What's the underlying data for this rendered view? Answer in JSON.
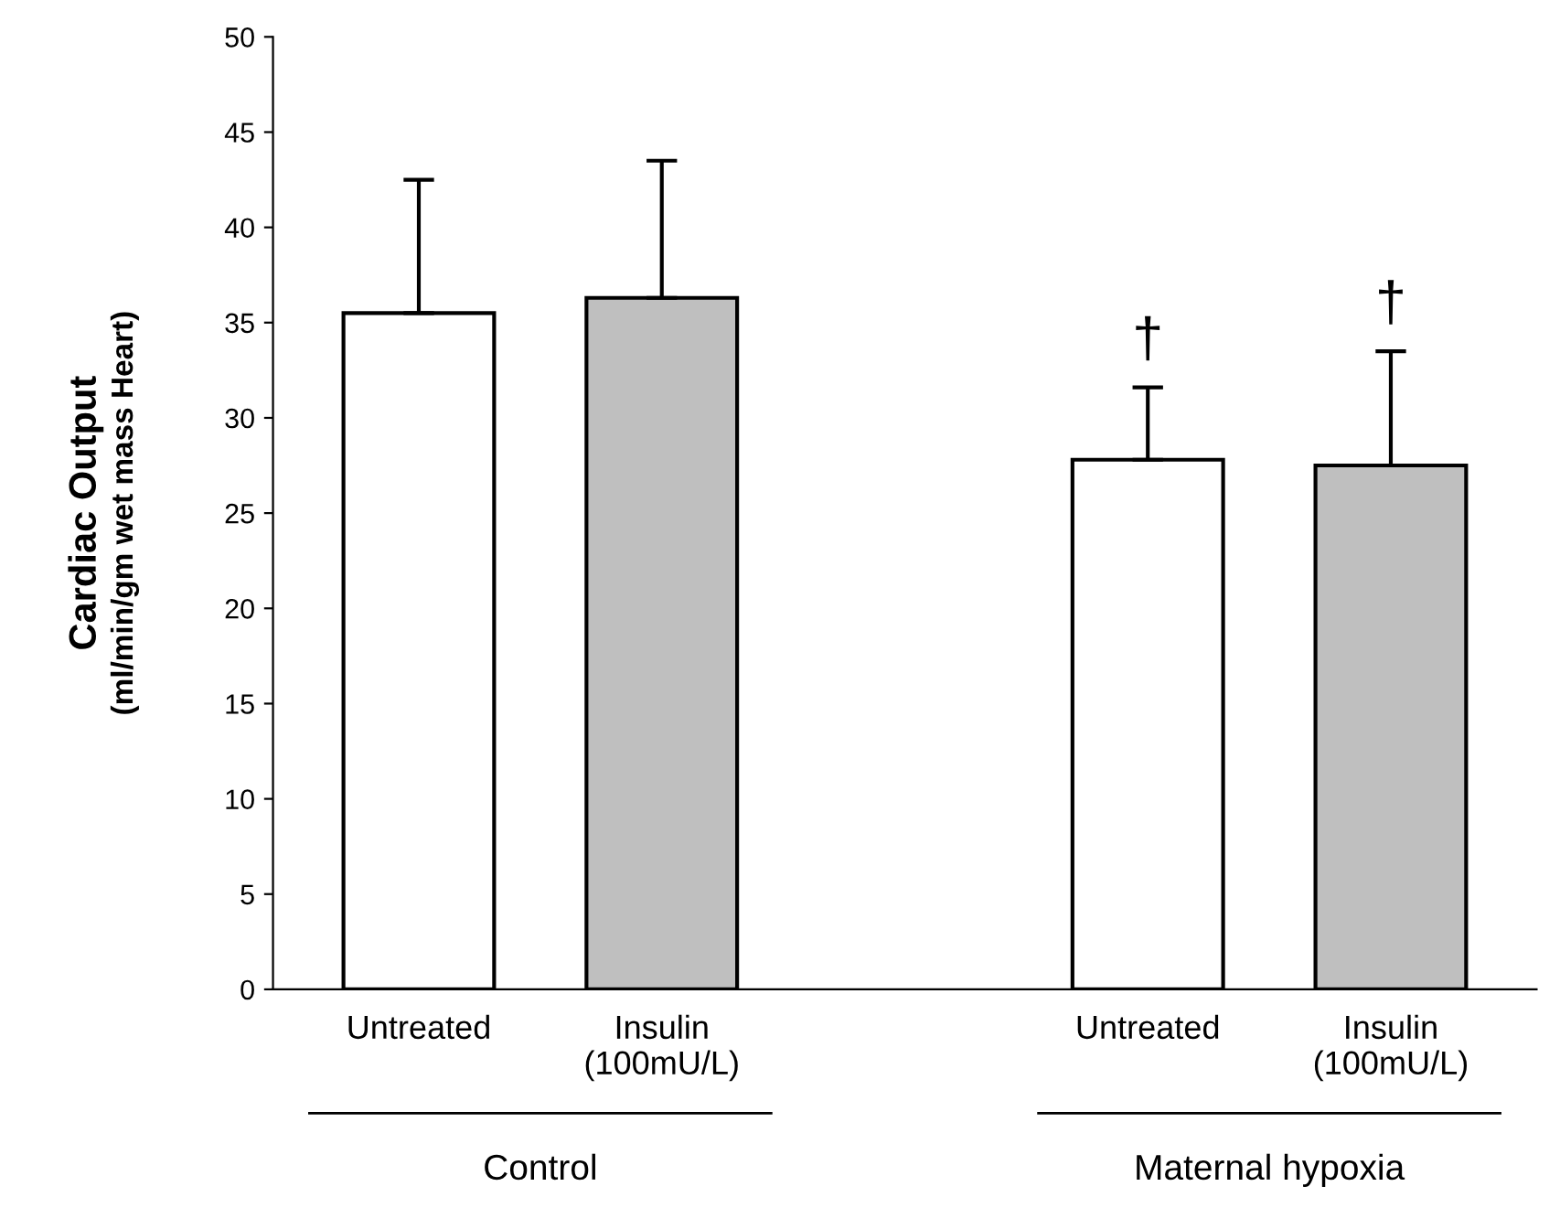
{
  "chart_data": {
    "type": "bar",
    "categories": [
      "Untreated",
      "Insulin\n(100mU/L)",
      null,
      "Untreated",
      "Insulin\n(100mU/L)"
    ],
    "values": [
      35.5,
      36.3,
      null,
      27.8,
      27.5
    ],
    "colors": [
      "#ffffff",
      "#bfbfbf",
      null,
      "#ffffff",
      "#bfbfbf"
    ],
    "errors": [
      [
        35.5,
        42.5
      ],
      [
        36.3,
        43.5
      ],
      null,
      [
        27.8,
        31.6
      ],
      [
        27.5,
        33.5
      ]
    ],
    "value_labels": [
      null,
      null,
      null,
      "†",
      "†"
    ],
    "ylabel": "Cardiac Output\n(ml/min/gm wet mass Heart)",
    "ylim": [
      0,
      50
    ],
    "yticks": [
      0,
      5,
      10,
      15,
      20,
      25,
      30,
      35,
      40,
      45,
      50
    ],
    "annotations": [
      "Control",
      "Maternal hypoxia"
    ],
    "grid": false
  }
}
